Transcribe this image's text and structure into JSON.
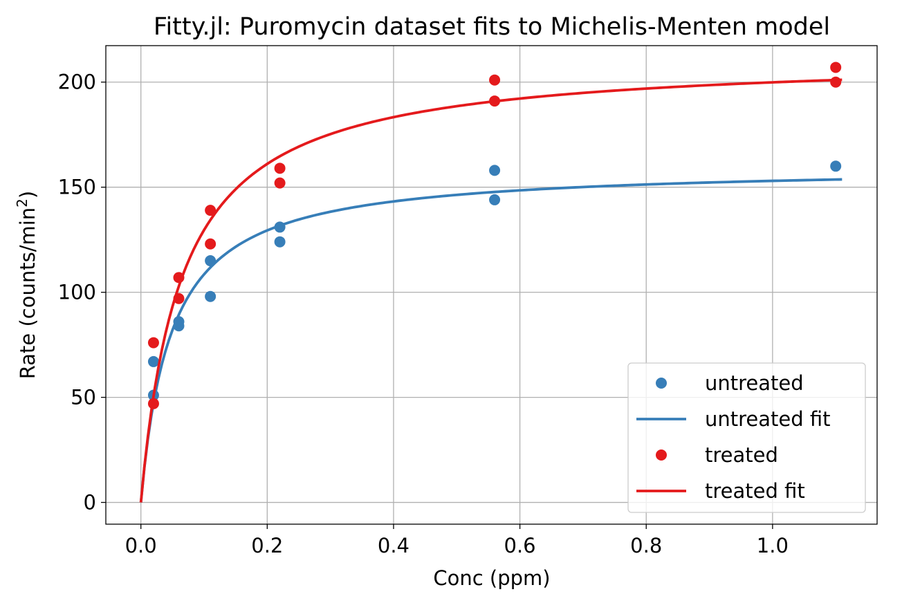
{
  "chart_data": {
    "type": "scatter",
    "title": "Fitty.jl: Puromycin dataset fits to Michelis-Menten model",
    "xlabel": "Conc (ppm)",
    "ylabel_main": "Rate (counts/min",
    "ylabel_sup": "2",
    "ylabel_close": ")",
    "xlim": [
      -0.0555,
      1.1655
    ],
    "ylim": [
      -10.35,
      217.35
    ],
    "xticks": [
      0.0,
      0.2,
      0.4,
      0.6,
      0.8,
      1.0
    ],
    "xtick_labels": [
      "0.0",
      "0.2",
      "0.4",
      "0.6",
      "0.8",
      "1.0"
    ],
    "yticks": [
      0,
      50,
      100,
      150,
      200
    ],
    "ytick_labels": [
      "0",
      "50",
      "100",
      "150",
      "200"
    ],
    "grid": true,
    "legend_position": "lower-right",
    "series": [
      {
        "name": "untreated",
        "kind": "points",
        "color": "#377eb8",
        "x": [
          0.02,
          0.02,
          0.06,
          0.06,
          0.11,
          0.11,
          0.22,
          0.22,
          0.56,
          0.56,
          1.1
        ],
        "y": [
          67,
          51,
          84,
          86,
          98,
          115,
          131,
          124,
          144,
          158,
          160
        ]
      },
      {
        "name": "untreated fit",
        "kind": "line",
        "color": "#377eb8",
        "model": "michaelis-menten",
        "vmax": 160.3,
        "km": 0.0477,
        "x_range": [
          0.0,
          1.11
        ]
      },
      {
        "name": "treated",
        "kind": "points",
        "color": "#e41a1c",
        "x": [
          0.02,
          0.02,
          0.06,
          0.06,
          0.11,
          0.11,
          0.22,
          0.22,
          0.56,
          0.56,
          1.1,
          1.1
        ],
        "y": [
          76,
          47,
          97,
          107,
          123,
          139,
          159,
          152,
          191,
          201,
          207,
          200
        ]
      },
      {
        "name": "treated fit",
        "kind": "line",
        "color": "#e41a1c",
        "model": "michaelis-menten",
        "vmax": 212.7,
        "km": 0.0641,
        "x_range": [
          0.0,
          1.11
        ]
      }
    ]
  }
}
